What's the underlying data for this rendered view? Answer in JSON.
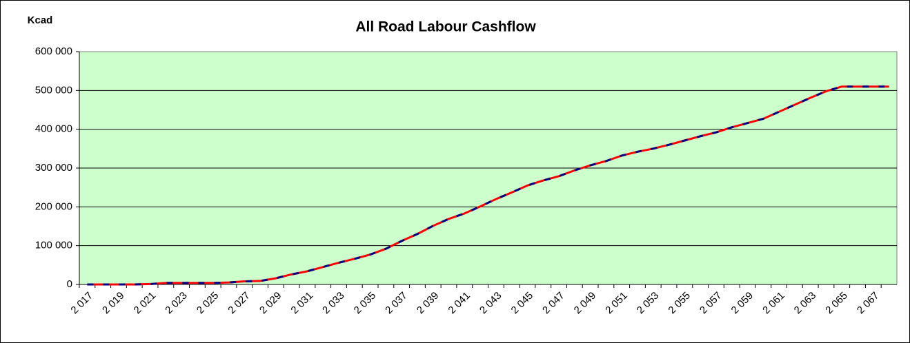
{
  "chart_data": {
    "type": "line",
    "title": "All Road Labour Cashflow",
    "y_label": "Kcad",
    "categories": [
      "2 017",
      null,
      "2 019",
      null,
      "2 021",
      null,
      "2 023",
      null,
      "2 025",
      null,
      "2 027",
      null,
      "2 029",
      null,
      "2 031",
      null,
      "2 033",
      null,
      "2 035",
      null,
      "2 037",
      null,
      "2 039",
      null,
      "2 041",
      null,
      "2 043",
      null,
      "2 045",
      null,
      "2 047",
      null,
      "2 049",
      null,
      "2 051",
      null,
      "2 053",
      null,
      "2 055",
      null,
      "2 057",
      null,
      "2 059",
      null,
      "2 061",
      null,
      "2 063",
      null,
      "2 065",
      null,
      "2 067",
      null
    ],
    "series": [
      {
        "color": "#ff0000",
        "values": [
          0,
          0,
          0,
          0,
          1000,
          4000,
          4000,
          4000,
          4000,
          5000,
          8000,
          9000,
          16000,
          26000,
          34000,
          45000,
          56000,
          66000,
          77000,
          92000,
          112000,
          130000,
          151000,
          169000,
          183000,
          201000,
          220000,
          237000,
          255000,
          268000,
          279000,
          294000,
          307000,
          318000,
          332000,
          342000,
          350000,
          360000,
          371000,
          382000,
          392000,
          405000,
          416000,
          427000,
          445000,
          463000,
          481000,
          498000,
          510000,
          510000,
          510000,
          510000
        ]
      },
      {
        "color": "#000080",
        "dashed": true,
        "values": [
          0,
          0,
          0,
          0,
          1000,
          4000,
          4000,
          4000,
          4000,
          5000,
          8000,
          9000,
          16000,
          26000,
          34000,
          45000,
          56000,
          66000,
          77000,
          92000,
          112000,
          130000,
          151000,
          169000,
          183000,
          201000,
          220000,
          237000,
          255000,
          268000,
          279000,
          294000,
          307000,
          318000,
          332000,
          342000,
          350000,
          360000,
          371000,
          382000,
          392000,
          405000,
          416000,
          427000,
          445000,
          463000,
          481000,
          498000,
          510000,
          510000,
          510000,
          510000
        ]
      }
    ],
    "ylim": [
      0,
      600000
    ],
    "yticks": [
      0,
      {
        "value": 100000,
        "label": "100 000"
      },
      {
        "value": 200000,
        "label": "200 000"
      },
      {
        "value": 300000,
        "label": "300 000"
      },
      {
        "value": 400000,
        "label": "400 000"
      },
      {
        "value": 500000,
        "label": "500 000"
      },
      {
        "value": 600000,
        "label": "600 000"
      }
    ],
    "grid": true,
    "plot_background": "#ccffcc"
  }
}
